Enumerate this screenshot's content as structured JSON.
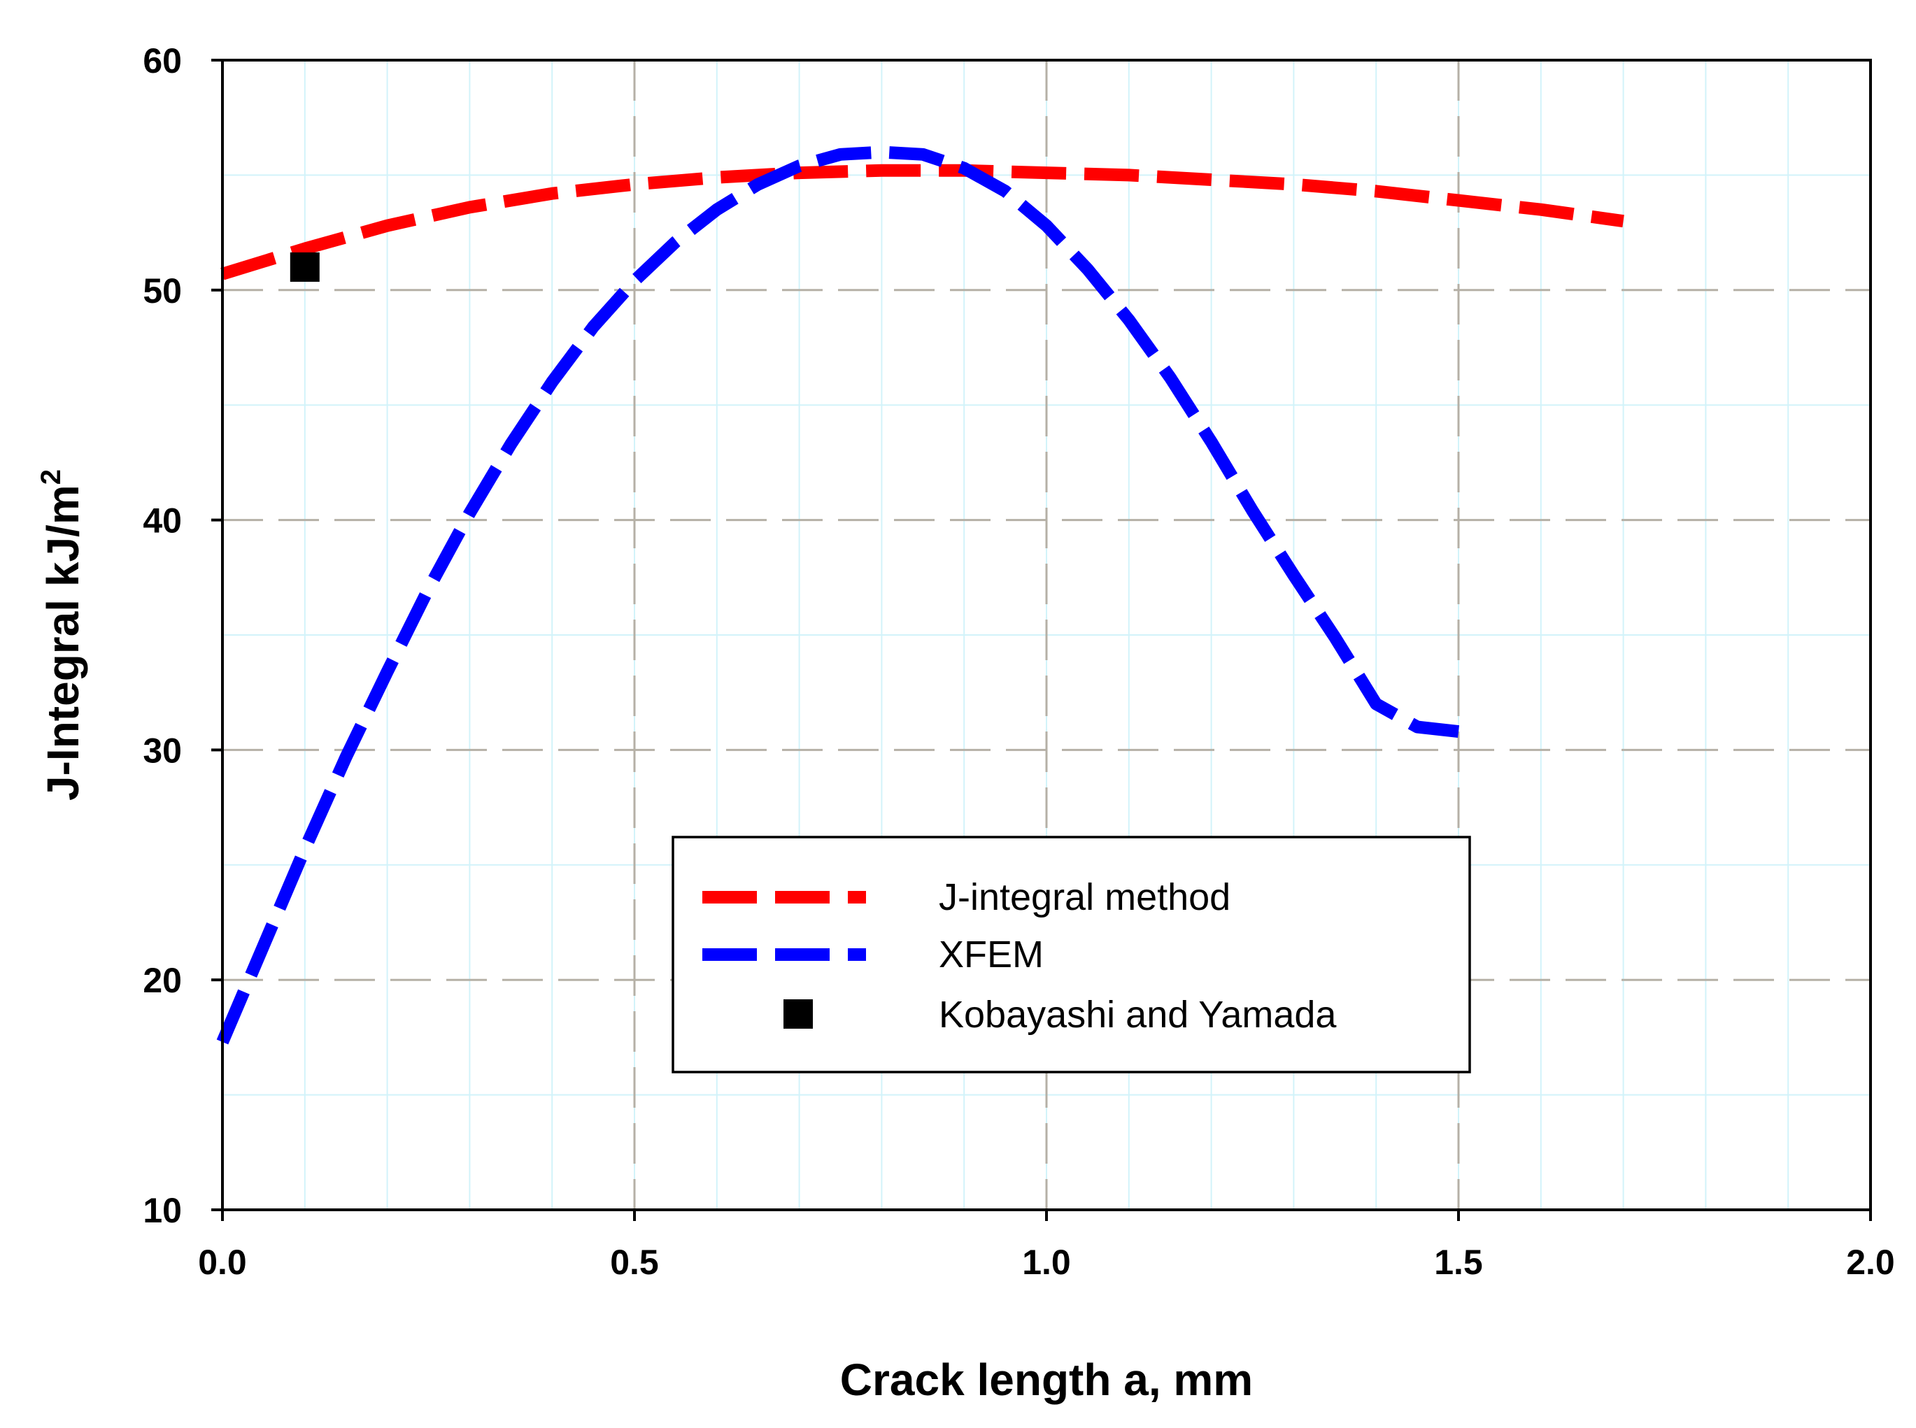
{
  "chart_data": {
    "type": "line",
    "title": "",
    "xlabel": "Crack length a, mm",
    "ylabel": "J-Integral  kJ/m",
    "ylabel_superscript": "2",
    "xlim": [
      0.0,
      2.0
    ],
    "ylim": [
      10,
      60
    ],
    "xticks": [
      0.0,
      0.5,
      1.0,
      1.5,
      2.0
    ],
    "xtick_labels": [
      "0.0",
      "0.5",
      "1.0",
      "1.5",
      "2.0"
    ],
    "yticks": [
      10,
      20,
      30,
      40,
      50,
      60
    ],
    "ytick_labels": [
      "10",
      "20",
      "30",
      "40",
      "50",
      "60"
    ],
    "grid": true,
    "legend_position": "lower-center",
    "series": [
      {
        "name": "J-integral method",
        "style": "dashed-line",
        "color": "#ff0000",
        "x": [
          0.0,
          0.1,
          0.2,
          0.3,
          0.4,
          0.5,
          0.6,
          0.7,
          0.8,
          0.9,
          1.0,
          1.1,
          1.2,
          1.3,
          1.4,
          1.5,
          1.6,
          1.7
        ],
        "y": [
          50.7,
          51.8,
          52.8,
          53.6,
          54.2,
          54.6,
          54.9,
          55.1,
          55.2,
          55.2,
          55.1,
          55.0,
          54.8,
          54.6,
          54.3,
          53.9,
          53.5,
          53.0
        ]
      },
      {
        "name": "XFEM",
        "style": "dashed-line",
        "color": "#0000ff",
        "x": [
          0.0,
          0.05,
          0.1,
          0.15,
          0.2,
          0.25,
          0.3,
          0.35,
          0.4,
          0.45,
          0.5,
          0.55,
          0.6,
          0.65,
          0.7,
          0.75,
          0.8,
          0.85,
          0.9,
          0.95,
          1.0,
          1.05,
          1.1,
          1.15,
          1.2,
          1.25,
          1.3,
          1.35,
          1.4,
          1.45,
          1.5
        ],
        "y": [
          17.3,
          21.5,
          25.7,
          29.7,
          33.4,
          37.0,
          40.3,
          43.3,
          46.0,
          48.4,
          50.4,
          52.1,
          53.5,
          54.6,
          55.4,
          55.9,
          56.0,
          55.9,
          55.3,
          54.3,
          52.8,
          50.9,
          48.7,
          46.2,
          43.4,
          40.4,
          37.6,
          34.9,
          32.0,
          31.0,
          30.8
        ]
      },
      {
        "name": "Kobayashi and Yamada",
        "style": "marker-square",
        "color": "#000000",
        "x": [
          0.1
        ],
        "y": [
          51.0
        ]
      }
    ]
  }
}
